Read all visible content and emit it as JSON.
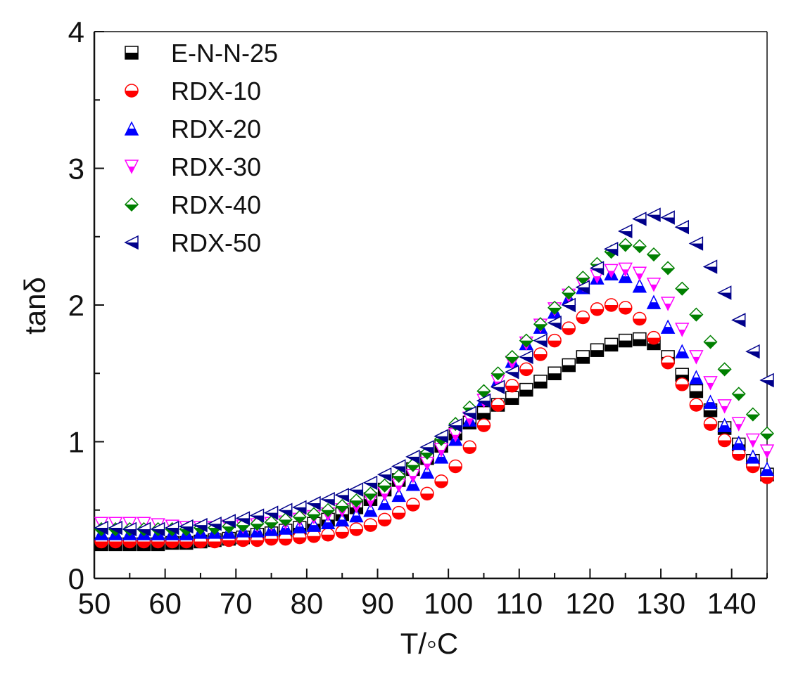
{
  "chart_data": {
    "type": "scatter",
    "title": "",
    "xlabel": "T/◦C",
    "ylabel": "tanδ",
    "xlim": [
      50,
      145
    ],
    "ylim": [
      0,
      4
    ],
    "x_ticks": [
      50,
      60,
      70,
      80,
      90,
      100,
      110,
      120,
      130,
      140
    ],
    "x_tick_labels": [
      "50",
      "60",
      "70",
      "80",
      "90",
      "100",
      "110",
      "120",
      "130",
      "140"
    ],
    "y_ticks": [
      0,
      1,
      2,
      3,
      4
    ],
    "y_tick_labels": [
      "0",
      "1",
      "2",
      "3",
      "4"
    ],
    "grid": false,
    "legend_position": "top-left",
    "x": [
      51,
      53,
      55,
      57,
      59,
      61,
      63,
      65,
      67,
      69,
      71,
      73,
      75,
      77,
      79,
      81,
      83,
      85,
      87,
      89,
      91,
      93,
      95,
      97,
      99,
      101,
      103,
      105,
      107,
      109,
      111,
      113,
      115,
      117,
      119,
      121,
      123,
      125,
      127,
      129,
      131,
      133,
      135,
      137,
      139,
      141,
      143,
      145
    ],
    "series": [
      {
        "name": "E-N-N-25",
        "marker": "square",
        "color": "#000000",
        "values": [
          0.25,
          0.25,
          0.25,
          0.25,
          0.25,
          0.26,
          0.26,
          0.27,
          0.28,
          0.29,
          0.3,
          0.32,
          0.33,
          0.35,
          0.37,
          0.4,
          0.43,
          0.47,
          0.52,
          0.58,
          0.65,
          0.72,
          0.8,
          0.88,
          0.97,
          1.06,
          1.14,
          1.21,
          1.27,
          1.32,
          1.38,
          1.44,
          1.5,
          1.56,
          1.62,
          1.67,
          1.71,
          1.74,
          1.75,
          1.72,
          1.62,
          1.49,
          1.37,
          1.23,
          1.1,
          0.98,
          0.86,
          0.76
        ]
      },
      {
        "name": "RDX-10",
        "marker": "circle",
        "color": "#ff0000",
        "values": [
          0.27,
          0.27,
          0.27,
          0.27,
          0.27,
          0.27,
          0.27,
          0.27,
          0.27,
          0.28,
          0.28,
          0.28,
          0.29,
          0.29,
          0.3,
          0.31,
          0.32,
          0.34,
          0.36,
          0.39,
          0.43,
          0.48,
          0.54,
          0.62,
          0.71,
          0.82,
          0.96,
          1.12,
          1.27,
          1.41,
          1.53,
          1.64,
          1.74,
          1.83,
          1.91,
          1.97,
          2.0,
          1.98,
          1.9,
          1.76,
          1.58,
          1.42,
          1.27,
          1.13,
          1.01,
          0.91,
          0.82,
          0.74
        ]
      },
      {
        "name": "RDX-20",
        "marker": "triangle-up",
        "color": "#0000ff",
        "values": [
          0.33,
          0.33,
          0.33,
          0.33,
          0.33,
          0.33,
          0.33,
          0.34,
          0.34,
          0.34,
          0.35,
          0.35,
          0.36,
          0.37,
          0.38,
          0.39,
          0.41,
          0.43,
          0.46,
          0.5,
          0.55,
          0.61,
          0.69,
          0.78,
          0.89,
          1.02,
          1.16,
          1.31,
          1.45,
          1.59,
          1.72,
          1.84,
          1.95,
          2.05,
          2.13,
          2.2,
          2.23,
          2.21,
          2.14,
          2.02,
          1.84,
          1.66,
          1.47,
          1.29,
          1.12,
          0.99,
          0.89,
          0.8
        ]
      },
      {
        "name": "RDX-30",
        "marker": "triangle-down",
        "color": "#ff00ff",
        "values": [
          0.4,
          0.4,
          0.4,
          0.4,
          0.39,
          0.38,
          0.37,
          0.37,
          0.37,
          0.38,
          0.38,
          0.39,
          0.4,
          0.41,
          0.43,
          0.45,
          0.47,
          0.5,
          0.53,
          0.57,
          0.62,
          0.68,
          0.75,
          0.84,
          0.94,
          1.05,
          1.17,
          1.3,
          1.44,
          1.58,
          1.72,
          1.85,
          1.97,
          2.07,
          2.15,
          2.21,
          2.25,
          2.26,
          2.23,
          2.15,
          2.01,
          1.82,
          1.62,
          1.43,
          1.26,
          1.13,
          1.01,
          0.93
        ]
      },
      {
        "name": "RDX-40",
        "marker": "diamond",
        "color": "#008000",
        "values": [
          0.36,
          0.36,
          0.36,
          0.36,
          0.36,
          0.36,
          0.36,
          0.37,
          0.37,
          0.38,
          0.39,
          0.4,
          0.41,
          0.43,
          0.45,
          0.47,
          0.5,
          0.53,
          0.57,
          0.62,
          0.68,
          0.75,
          0.83,
          0.92,
          1.02,
          1.13,
          1.25,
          1.37,
          1.5,
          1.62,
          1.74,
          1.86,
          1.98,
          2.09,
          2.2,
          2.3,
          2.39,
          2.44,
          2.43,
          2.37,
          2.27,
          2.12,
          1.93,
          1.73,
          1.53,
          1.35,
          1.2,
          1.06
        ]
      },
      {
        "name": "RDX-50",
        "marker": "triangle-left",
        "color": "#00008b",
        "values": [
          0.37,
          0.37,
          0.36,
          0.36,
          0.36,
          0.37,
          0.38,
          0.39,
          0.4,
          0.42,
          0.44,
          0.46,
          0.48,
          0.5,
          0.52,
          0.55,
          0.58,
          0.61,
          0.65,
          0.7,
          0.76,
          0.82,
          0.89,
          0.96,
          1.04,
          1.12,
          1.21,
          1.3,
          1.4,
          1.51,
          1.62,
          1.74,
          1.87,
          2.0,
          2.13,
          2.27,
          2.41,
          2.54,
          2.63,
          2.66,
          2.64,
          2.57,
          2.45,
          2.28,
          2.09,
          1.89,
          1.66,
          1.45
        ]
      }
    ]
  }
}
